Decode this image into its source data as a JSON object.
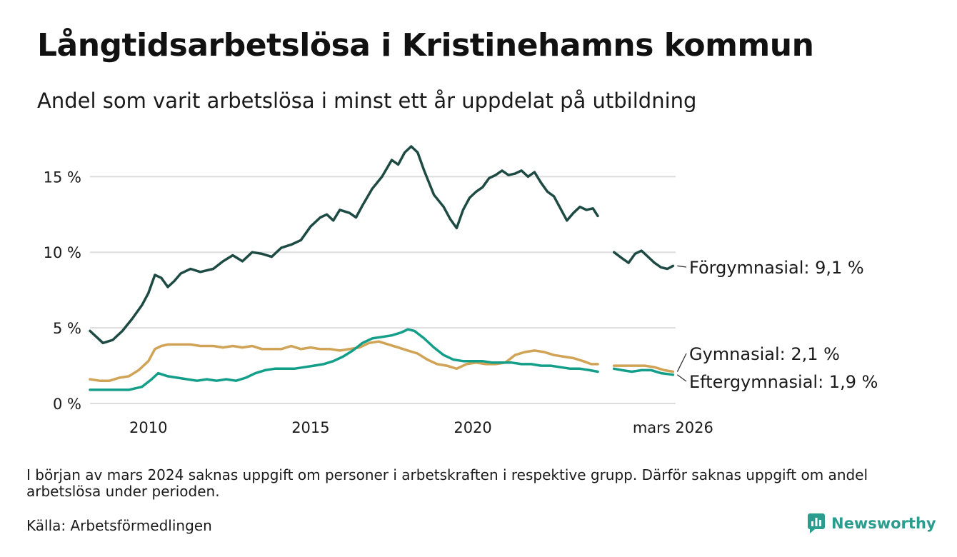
{
  "title": "Långtidsarbetslösa i Kristinehamns kommun",
  "subtitle": "Andel som varit arbetslösa i minst ett år uppdelat på utbildning",
  "note": "I början av mars 2024 saknas uppgift om personer i arbetskraften i respektive grupp. Därför saknas uppgift om andel arbetslösa under perioden.",
  "source": "Källa: Arbetsförmedlingen",
  "brand": {
    "name": "Newsworthy",
    "icon": "newsworthy-logo-icon"
  },
  "colors": {
    "forgymnasial": "#1e4a44",
    "gymnasial": "#d1a356",
    "eftergymnasial": "#139e8a",
    "grid": "#dddddd",
    "text": "#1a1a1a",
    "brand": "#2a9d8f"
  },
  "chart_data": {
    "type": "line",
    "title": "Långtidsarbetslösa i Kristinehamns kommun",
    "xlabel": "",
    "ylabel": "",
    "xlim": [
      2008.2,
      2026.25
    ],
    "ylim": [
      0,
      17
    ],
    "y_ticks": [
      0,
      5,
      10,
      15
    ],
    "y_tick_labels": [
      "0 %",
      "5 %",
      "10 %",
      "15 %"
    ],
    "x_ticks": [
      2010,
      2015,
      2020,
      2026.17
    ],
    "x_tick_labels": [
      "2010",
      "2015",
      "2020",
      "mars 2026"
    ],
    "gap": [
      2023.9,
      2024.3
    ],
    "series": [
      {
        "key": "forgymnasial",
        "name": "Förgymnasial",
        "end_label": "Förgymnasial: 9,1 %",
        "points": [
          [
            2008.2,
            4.8
          ],
          [
            2008.4,
            4.4
          ],
          [
            2008.6,
            4.0
          ],
          [
            2008.9,
            4.2
          ],
          [
            2009.2,
            4.8
          ],
          [
            2009.5,
            5.6
          ],
          [
            2009.8,
            6.5
          ],
          [
            2010.0,
            7.3
          ],
          [
            2010.2,
            8.5
          ],
          [
            2010.4,
            8.3
          ],
          [
            2010.6,
            7.7
          ],
          [
            2010.8,
            8.1
          ],
          [
            2011.0,
            8.6
          ],
          [
            2011.3,
            8.9
          ],
          [
            2011.6,
            8.7
          ],
          [
            2012.0,
            8.9
          ],
          [
            2012.3,
            9.4
          ],
          [
            2012.6,
            9.8
          ],
          [
            2012.9,
            9.4
          ],
          [
            2013.2,
            10.0
          ],
          [
            2013.5,
            9.9
          ],
          [
            2013.8,
            9.7
          ],
          [
            2014.1,
            10.3
          ],
          [
            2014.4,
            10.5
          ],
          [
            2014.7,
            10.8
          ],
          [
            2015.0,
            11.7
          ],
          [
            2015.3,
            12.3
          ],
          [
            2015.5,
            12.5
          ],
          [
            2015.7,
            12.1
          ],
          [
            2015.9,
            12.8
          ],
          [
            2016.2,
            12.6
          ],
          [
            2016.4,
            12.3
          ],
          [
            2016.6,
            13.1
          ],
          [
            2016.9,
            14.2
          ],
          [
            2017.2,
            15.0
          ],
          [
            2017.5,
            16.1
          ],
          [
            2017.7,
            15.8
          ],
          [
            2017.9,
            16.6
          ],
          [
            2018.1,
            17.0
          ],
          [
            2018.3,
            16.6
          ],
          [
            2018.5,
            15.4
          ],
          [
            2018.8,
            13.8
          ],
          [
            2019.1,
            13.0
          ],
          [
            2019.3,
            12.2
          ],
          [
            2019.5,
            11.6
          ],
          [
            2019.7,
            12.8
          ],
          [
            2019.9,
            13.6
          ],
          [
            2020.1,
            14.0
          ],
          [
            2020.3,
            14.3
          ],
          [
            2020.5,
            14.9
          ],
          [
            2020.7,
            15.1
          ],
          [
            2020.9,
            15.4
          ],
          [
            2021.1,
            15.1
          ],
          [
            2021.3,
            15.2
          ],
          [
            2021.5,
            15.4
          ],
          [
            2021.7,
            15.0
          ],
          [
            2021.9,
            15.3
          ],
          [
            2022.1,
            14.6
          ],
          [
            2022.3,
            14.0
          ],
          [
            2022.5,
            13.7
          ],
          [
            2022.7,
            12.9
          ],
          [
            2022.9,
            12.1
          ],
          [
            2023.1,
            12.6
          ],
          [
            2023.3,
            13.0
          ],
          [
            2023.5,
            12.8
          ],
          [
            2023.7,
            12.9
          ],
          [
            2023.85,
            12.4
          ],
          [
            2024.35,
            10.0
          ],
          [
            2024.6,
            9.6
          ],
          [
            2024.8,
            9.3
          ],
          [
            2025.0,
            9.9
          ],
          [
            2025.2,
            10.1
          ],
          [
            2025.4,
            9.7
          ],
          [
            2025.6,
            9.3
          ],
          [
            2025.8,
            9.0
          ],
          [
            2026.0,
            8.9
          ],
          [
            2026.17,
            9.1
          ]
        ]
      },
      {
        "key": "gymnasial",
        "name": "Gymnasial",
        "end_label": "Gymnasial: 2,1 %",
        "points": [
          [
            2008.2,
            1.6
          ],
          [
            2008.5,
            1.5
          ],
          [
            2008.8,
            1.5
          ],
          [
            2009.1,
            1.7
          ],
          [
            2009.4,
            1.8
          ],
          [
            2009.7,
            2.2
          ],
          [
            2010.0,
            2.8
          ],
          [
            2010.2,
            3.6
          ],
          [
            2010.4,
            3.8
          ],
          [
            2010.6,
            3.9
          ],
          [
            2010.8,
            3.9
          ],
          [
            2011.0,
            3.9
          ],
          [
            2011.3,
            3.9
          ],
          [
            2011.6,
            3.8
          ],
          [
            2012.0,
            3.8
          ],
          [
            2012.3,
            3.7
          ],
          [
            2012.6,
            3.8
          ],
          [
            2012.9,
            3.7
          ],
          [
            2013.2,
            3.8
          ],
          [
            2013.5,
            3.6
          ],
          [
            2013.8,
            3.6
          ],
          [
            2014.1,
            3.6
          ],
          [
            2014.4,
            3.8
          ],
          [
            2014.7,
            3.6
          ],
          [
            2015.0,
            3.7
          ],
          [
            2015.3,
            3.6
          ],
          [
            2015.6,
            3.6
          ],
          [
            2015.9,
            3.5
          ],
          [
            2016.2,
            3.6
          ],
          [
            2016.5,
            3.7
          ],
          [
            2016.8,
            4.0
          ],
          [
            2017.1,
            4.1
          ],
          [
            2017.4,
            3.9
          ],
          [
            2017.7,
            3.7
          ],
          [
            2018.0,
            3.5
          ],
          [
            2018.3,
            3.3
          ],
          [
            2018.6,
            2.9
          ],
          [
            2018.9,
            2.6
          ],
          [
            2019.2,
            2.5
          ],
          [
            2019.5,
            2.3
          ],
          [
            2019.8,
            2.6
          ],
          [
            2020.1,
            2.7
          ],
          [
            2020.4,
            2.6
          ],
          [
            2020.7,
            2.6
          ],
          [
            2021.0,
            2.7
          ],
          [
            2021.3,
            3.2
          ],
          [
            2021.6,
            3.4
          ],
          [
            2021.9,
            3.5
          ],
          [
            2022.2,
            3.4
          ],
          [
            2022.5,
            3.2
          ],
          [
            2022.8,
            3.1
          ],
          [
            2023.1,
            3.0
          ],
          [
            2023.4,
            2.8
          ],
          [
            2023.65,
            2.6
          ],
          [
            2023.85,
            2.6
          ],
          [
            2024.35,
            2.5
          ],
          [
            2024.7,
            2.5
          ],
          [
            2025.0,
            2.5
          ],
          [
            2025.3,
            2.5
          ],
          [
            2025.6,
            2.4
          ],
          [
            2025.9,
            2.2
          ],
          [
            2026.17,
            2.1
          ]
        ]
      },
      {
        "key": "eftergymnasial",
        "name": "Eftergymnasial",
        "end_label": "Eftergymnasial: 1,9 %",
        "points": [
          [
            2008.2,
            0.9
          ],
          [
            2008.6,
            0.9
          ],
          [
            2009.0,
            0.9
          ],
          [
            2009.4,
            0.9
          ],
          [
            2009.8,
            1.1
          ],
          [
            2010.1,
            1.6
          ],
          [
            2010.3,
            2.0
          ],
          [
            2010.6,
            1.8
          ],
          [
            2010.9,
            1.7
          ],
          [
            2011.2,
            1.6
          ],
          [
            2011.5,
            1.5
          ],
          [
            2011.8,
            1.6
          ],
          [
            2012.1,
            1.5
          ],
          [
            2012.4,
            1.6
          ],
          [
            2012.7,
            1.5
          ],
          [
            2013.0,
            1.7
          ],
          [
            2013.3,
            2.0
          ],
          [
            2013.6,
            2.2
          ],
          [
            2013.9,
            2.3
          ],
          [
            2014.2,
            2.3
          ],
          [
            2014.5,
            2.3
          ],
          [
            2014.8,
            2.4
          ],
          [
            2015.1,
            2.5
          ],
          [
            2015.4,
            2.6
          ],
          [
            2015.7,
            2.8
          ],
          [
            2016.0,
            3.1
          ],
          [
            2016.3,
            3.5
          ],
          [
            2016.6,
            4.0
          ],
          [
            2016.9,
            4.3
          ],
          [
            2017.2,
            4.4
          ],
          [
            2017.5,
            4.5
          ],
          [
            2017.8,
            4.7
          ],
          [
            2018.0,
            4.9
          ],
          [
            2018.2,
            4.8
          ],
          [
            2018.5,
            4.3
          ],
          [
            2018.8,
            3.7
          ],
          [
            2019.1,
            3.2
          ],
          [
            2019.4,
            2.9
          ],
          [
            2019.7,
            2.8
          ],
          [
            2020.0,
            2.8
          ],
          [
            2020.3,
            2.8
          ],
          [
            2020.6,
            2.7
          ],
          [
            2020.9,
            2.7
          ],
          [
            2021.2,
            2.7
          ],
          [
            2021.5,
            2.6
          ],
          [
            2021.8,
            2.6
          ],
          [
            2022.1,
            2.5
          ],
          [
            2022.4,
            2.5
          ],
          [
            2022.7,
            2.4
          ],
          [
            2023.0,
            2.3
          ],
          [
            2023.3,
            2.3
          ],
          [
            2023.6,
            2.2
          ],
          [
            2023.85,
            2.1
          ],
          [
            2024.35,
            2.3
          ],
          [
            2024.6,
            2.2
          ],
          [
            2024.9,
            2.1
          ],
          [
            2025.2,
            2.2
          ],
          [
            2025.5,
            2.2
          ],
          [
            2025.8,
            2.0
          ],
          [
            2026.0,
            1.95
          ],
          [
            2026.17,
            1.9
          ]
        ]
      }
    ]
  }
}
